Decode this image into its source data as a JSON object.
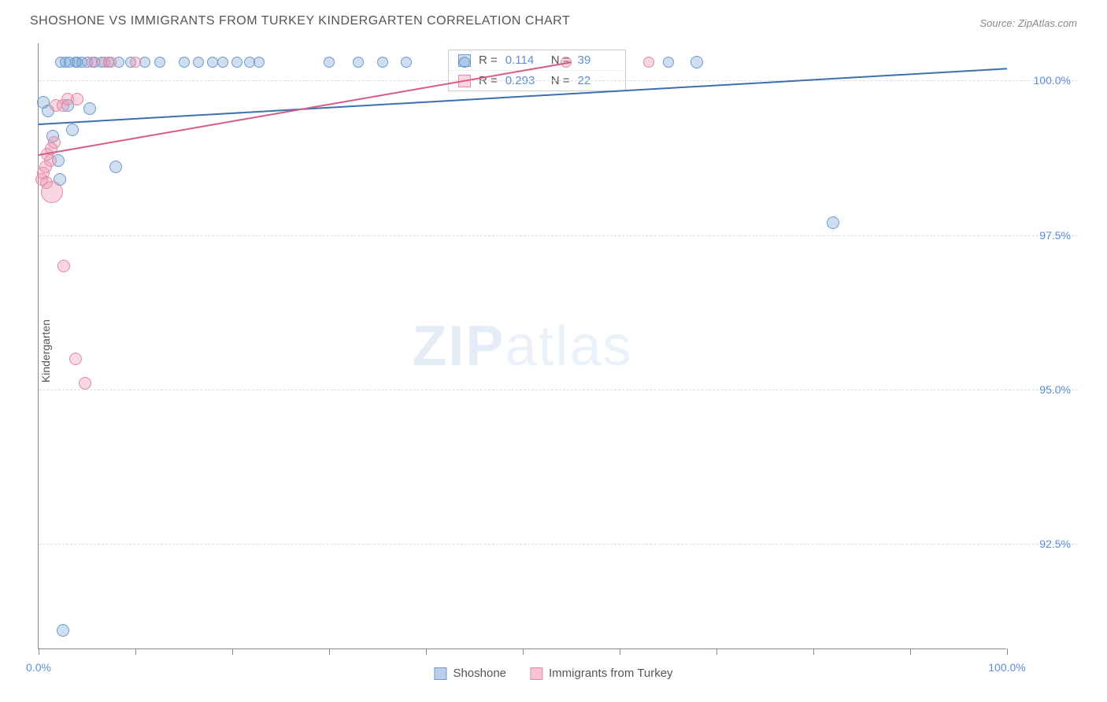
{
  "title": "SHOSHONE VS IMMIGRANTS FROM TURKEY KINDERGARTEN CORRELATION CHART",
  "source": "Source: ZipAtlas.com",
  "ylabel": "Kindergarten",
  "watermark_bold": "ZIP",
  "watermark_light": "atlas",
  "chart": {
    "type": "scatter",
    "xlim": [
      0,
      100
    ],
    "ylim": [
      90.8,
      100.6
    ],
    "yticks": [
      92.5,
      95.0,
      97.5,
      100.0
    ],
    "ytick_labels": [
      "92.5%",
      "95.0%",
      "97.5%",
      "100.0%"
    ],
    "xtick_positions": [
      0,
      10,
      20,
      30,
      40,
      50,
      60,
      70,
      80,
      90,
      100
    ],
    "xtick_labels_shown": {
      "0": "0.0%",
      "100": "100.0%"
    },
    "background_color": "#ffffff",
    "grid_color": "#dddddd",
    "axis_color": "#888888",
    "text_color": "#555555",
    "value_color": "#5b8dd6"
  },
  "series": [
    {
      "name": "Shoshone",
      "fill": "rgba(120,160,210,0.35)",
      "stroke": "#6a9bd1",
      "line_color": "#3a6fb0",
      "R": "0.114",
      "N": "39",
      "trend": {
        "x1": 0,
        "y1": 99.3,
        "x2": 100,
        "y2": 100.2
      },
      "points": [
        {
          "x": 0.5,
          "y": 99.65,
          "r": 8
        },
        {
          "x": 1.0,
          "y": 99.5,
          "r": 8
        },
        {
          "x": 1.5,
          "y": 99.1,
          "r": 8
        },
        {
          "x": 2.0,
          "y": 98.7,
          "r": 8
        },
        {
          "x": 2.2,
          "y": 98.4,
          "r": 8
        },
        {
          "x": 2.3,
          "y": 100.3,
          "r": 7
        },
        {
          "x": 2.8,
          "y": 100.3,
          "r": 7
        },
        {
          "x": 3.0,
          "y": 99.6,
          "r": 8
        },
        {
          "x": 3.2,
          "y": 100.3,
          "r": 7
        },
        {
          "x": 3.5,
          "y": 99.2,
          "r": 8
        },
        {
          "x": 3.8,
          "y": 100.3,
          "r": 7
        },
        {
          "x": 4.0,
          "y": 100.3,
          "r": 7
        },
        {
          "x": 4.5,
          "y": 100.3,
          "r": 7
        },
        {
          "x": 5.0,
          "y": 100.3,
          "r": 7
        },
        {
          "x": 5.3,
          "y": 99.55,
          "r": 8
        },
        {
          "x": 5.8,
          "y": 100.3,
          "r": 7
        },
        {
          "x": 6.5,
          "y": 100.3,
          "r": 7
        },
        {
          "x": 7.2,
          "y": 100.3,
          "r": 7
        },
        {
          "x": 8.0,
          "y": 98.6,
          "r": 8
        },
        {
          "x": 8.3,
          "y": 100.3,
          "r": 7
        },
        {
          "x": 9.5,
          "y": 100.3,
          "r": 7
        },
        {
          "x": 11.0,
          "y": 100.3,
          "r": 7
        },
        {
          "x": 12.5,
          "y": 100.3,
          "r": 7
        },
        {
          "x": 15.0,
          "y": 100.3,
          "r": 7
        },
        {
          "x": 16.5,
          "y": 100.3,
          "r": 7
        },
        {
          "x": 18.0,
          "y": 100.3,
          "r": 7
        },
        {
          "x": 19.0,
          "y": 100.3,
          "r": 7
        },
        {
          "x": 20.5,
          "y": 100.3,
          "r": 7
        },
        {
          "x": 21.8,
          "y": 100.3,
          "r": 7
        },
        {
          "x": 22.8,
          "y": 100.3,
          "r": 7
        },
        {
          "x": 30.0,
          "y": 100.3,
          "r": 7
        },
        {
          "x": 33.0,
          "y": 100.3,
          "r": 7
        },
        {
          "x": 35.5,
          "y": 100.3,
          "r": 7
        },
        {
          "x": 38.0,
          "y": 100.3,
          "r": 7
        },
        {
          "x": 44.0,
          "y": 100.3,
          "r": 7
        },
        {
          "x": 65.0,
          "y": 100.3,
          "r": 7
        },
        {
          "x": 68.0,
          "y": 100.3,
          "r": 8
        },
        {
          "x": 82.0,
          "y": 97.7,
          "r": 8
        },
        {
          "x": 2.5,
          "y": 91.1,
          "r": 8
        }
      ]
    },
    {
      "name": "Immigrants from Turkey",
      "fill": "rgba(235,140,170,0.35)",
      "stroke": "#e08aa8",
      "line_color": "#d65a88",
      "R": "0.293",
      "N": "22",
      "trend": {
        "x1": 0,
        "y1": 98.8,
        "x2": 55,
        "y2": 100.3
      },
      "points": [
        {
          "x": 0.3,
          "y": 98.4,
          "r": 8
        },
        {
          "x": 0.5,
          "y": 98.5,
          "r": 8
        },
        {
          "x": 0.7,
          "y": 98.6,
          "r": 8
        },
        {
          "x": 0.8,
          "y": 98.35,
          "r": 8
        },
        {
          "x": 0.9,
          "y": 98.8,
          "r": 8
        },
        {
          "x": 1.2,
          "y": 98.7,
          "r": 8
        },
        {
          "x": 1.3,
          "y": 98.9,
          "r": 8
        },
        {
          "x": 1.4,
          "y": 98.2,
          "r": 14
        },
        {
          "x": 1.6,
          "y": 99.0,
          "r": 8
        },
        {
          "x": 1.8,
          "y": 99.6,
          "r": 8
        },
        {
          "x": 2.5,
          "y": 99.6,
          "r": 8
        },
        {
          "x": 2.6,
          "y": 97.0,
          "r": 8
        },
        {
          "x": 3.0,
          "y": 99.7,
          "r": 8
        },
        {
          "x": 3.8,
          "y": 95.5,
          "r": 8
        },
        {
          "x": 4.0,
          "y": 99.7,
          "r": 8
        },
        {
          "x": 4.8,
          "y": 95.1,
          "r": 8
        },
        {
          "x": 5.5,
          "y": 100.3,
          "r": 7
        },
        {
          "x": 6.8,
          "y": 100.3,
          "r": 7
        },
        {
          "x": 7.5,
          "y": 100.3,
          "r": 7
        },
        {
          "x": 10.0,
          "y": 100.3,
          "r": 7
        },
        {
          "x": 54.5,
          "y": 100.3,
          "r": 7
        },
        {
          "x": 63.0,
          "y": 100.3,
          "r": 7
        }
      ]
    }
  ],
  "legend": {
    "items": [
      {
        "label": "Shoshone",
        "fill": "rgba(120,160,210,0.5)",
        "stroke": "#6a9bd1"
      },
      {
        "label": "Immigrants from Turkey",
        "fill": "rgba(235,140,170,0.5)",
        "stroke": "#e08aa8"
      }
    ]
  },
  "stats_labels": {
    "r": "R =",
    "n": "N ="
  }
}
